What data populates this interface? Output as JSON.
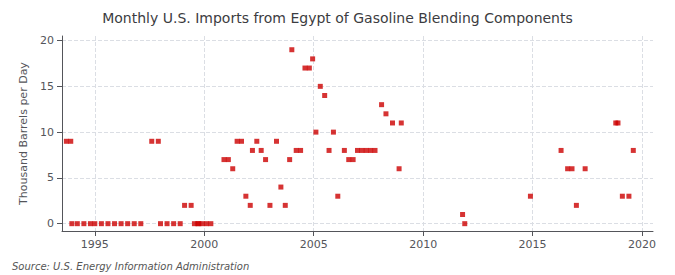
{
  "chart_data": {
    "type": "scatter",
    "title": "Monthly U.S. Imports from Egypt of Gasoline Blending Components",
    "ylabel": "Thousand Barrels per Day",
    "annotations": [
      "Source: U.S. Energy Information Administration"
    ],
    "color": "#cc0000",
    "marker": "square",
    "grid": true,
    "xlim": [
      1993.5,
      2020.5
    ],
    "ylim": [
      -0.8,
      20.5
    ],
    "xticks": [
      1995,
      2000,
      2005,
      2010,
      2015,
      2020
    ],
    "yticks": [
      0,
      5,
      10,
      15,
      20
    ],
    "x": [
      1993.7,
      1993.9,
      1997.6,
      1997.9,
      1999.1,
      1999.4,
      1999.7,
      1999.9,
      2000.1,
      2000.9,
      2001.1,
      2001.3,
      2001.5,
      2001.7,
      2001.9,
      2002.1,
      2002.2,
      2002.4,
      2002.6,
      2002.8,
      2003.0,
      2003.3,
      2003.5,
      2003.7,
      2003.9,
      2004.0,
      2004.2,
      2004.4,
      2004.6,
      2004.8,
      2004.95,
      2005.1,
      2005.3,
      2005.5,
      2005.7,
      2005.9,
      2006.1,
      2006.4,
      2006.6,
      2006.8,
      2007.0,
      2007.2,
      2007.4,
      2007.6,
      2007.8,
      2008.1,
      2008.3,
      2008.6,
      2008.9,
      2009.0,
      2011.8,
      2011.9,
      2014.9,
      2016.3,
      2016.6,
      2016.8,
      2017.0,
      2017.4,
      2018.8,
      2018.9,
      2019.1,
      2019.4,
      2019.6,
      1993.95,
      1994.2,
      1994.5,
      1994.8,
      1995.0,
      1995.3,
      1995.6,
      1995.9,
      1996.2,
      1996.5,
      1996.8,
      1997.1,
      1998.0,
      1998.3,
      1998.6,
      1998.9,
      1999.55,
      1999.75,
      2000.3
    ],
    "values": [
      9,
      9,
      9,
      9,
      2,
      2,
      0,
      0,
      0,
      7,
      7,
      6,
      9,
      9,
      3,
      2,
      8,
      9,
      8,
      7,
      2,
      9,
      4,
      2,
      7,
      19,
      8,
      8,
      17,
      17,
      18,
      10,
      15,
      14,
      8,
      10,
      3,
      8,
      7,
      7,
      8,
      8,
      8,
      8,
      8,
      13,
      12,
      11,
      6,
      11,
      1,
      0,
      3,
      8,
      6,
      6,
      2,
      6,
      11,
      11,
      3,
      3,
      8,
      0,
      0,
      0,
      0,
      0,
      0,
      0,
      0,
      0,
      0,
      0,
      0,
      0,
      0,
      0,
      0,
      0,
      0,
      0
    ]
  }
}
